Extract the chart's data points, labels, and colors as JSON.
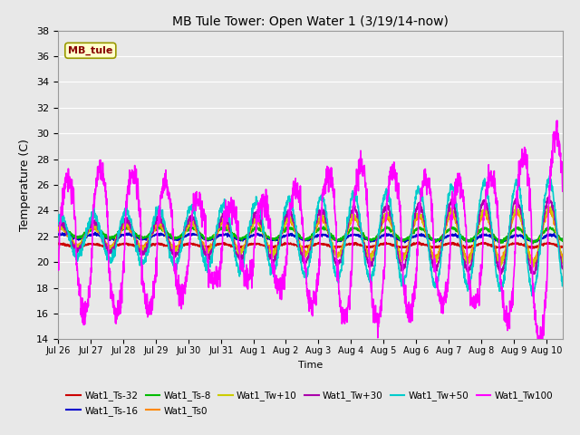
{
  "title": "MB Tule Tower: Open Water 1 (3/19/14-now)",
  "xlabel": "Time",
  "ylabel": "Temperature (C)",
  "ylim": [
    14,
    38
  ],
  "yticks": [
    14,
    16,
    18,
    20,
    22,
    24,
    26,
    28,
    30,
    32,
    34,
    36,
    38
  ],
  "bg_color": "#e8e8e8",
  "fig_bg": "#e8e8e8",
  "legend_label": "MB_tule",
  "series": [
    {
      "name": "Wat1_Ts-32",
      "color": "#cc0000",
      "lw": 1.2
    },
    {
      "name": "Wat1_Ts-16",
      "color": "#0000cc",
      "lw": 1.2
    },
    {
      "name": "Wat1_Ts-8",
      "color": "#00bb00",
      "lw": 1.2
    },
    {
      "name": "Wat1_Ts0",
      "color": "#ff8800",
      "lw": 1.2
    },
    {
      "name": "Wat1_Tw+10",
      "color": "#cccc00",
      "lw": 1.2
    },
    {
      "name": "Wat1_Tw+30",
      "color": "#aa00aa",
      "lw": 1.2
    },
    {
      "name": "Wat1_Tw+50",
      "color": "#00cccc",
      "lw": 1.2
    },
    {
      "name": "Wat1_Tw100",
      "color": "#ff00ff",
      "lw": 1.2
    }
  ],
  "x_tick_labels": [
    "Jul 26",
    "Jul 27",
    "Jul 28",
    "Jul 29",
    "Jul 30",
    "Jul 31",
    "Aug 1",
    "Aug 2",
    "Aug 3",
    "Aug 4",
    "Aug 5",
    "Aug 6",
    "Aug 7",
    "Aug 8",
    "Aug 9",
    "Aug 10"
  ],
  "n_days": 15.5,
  "n_points": 2000
}
